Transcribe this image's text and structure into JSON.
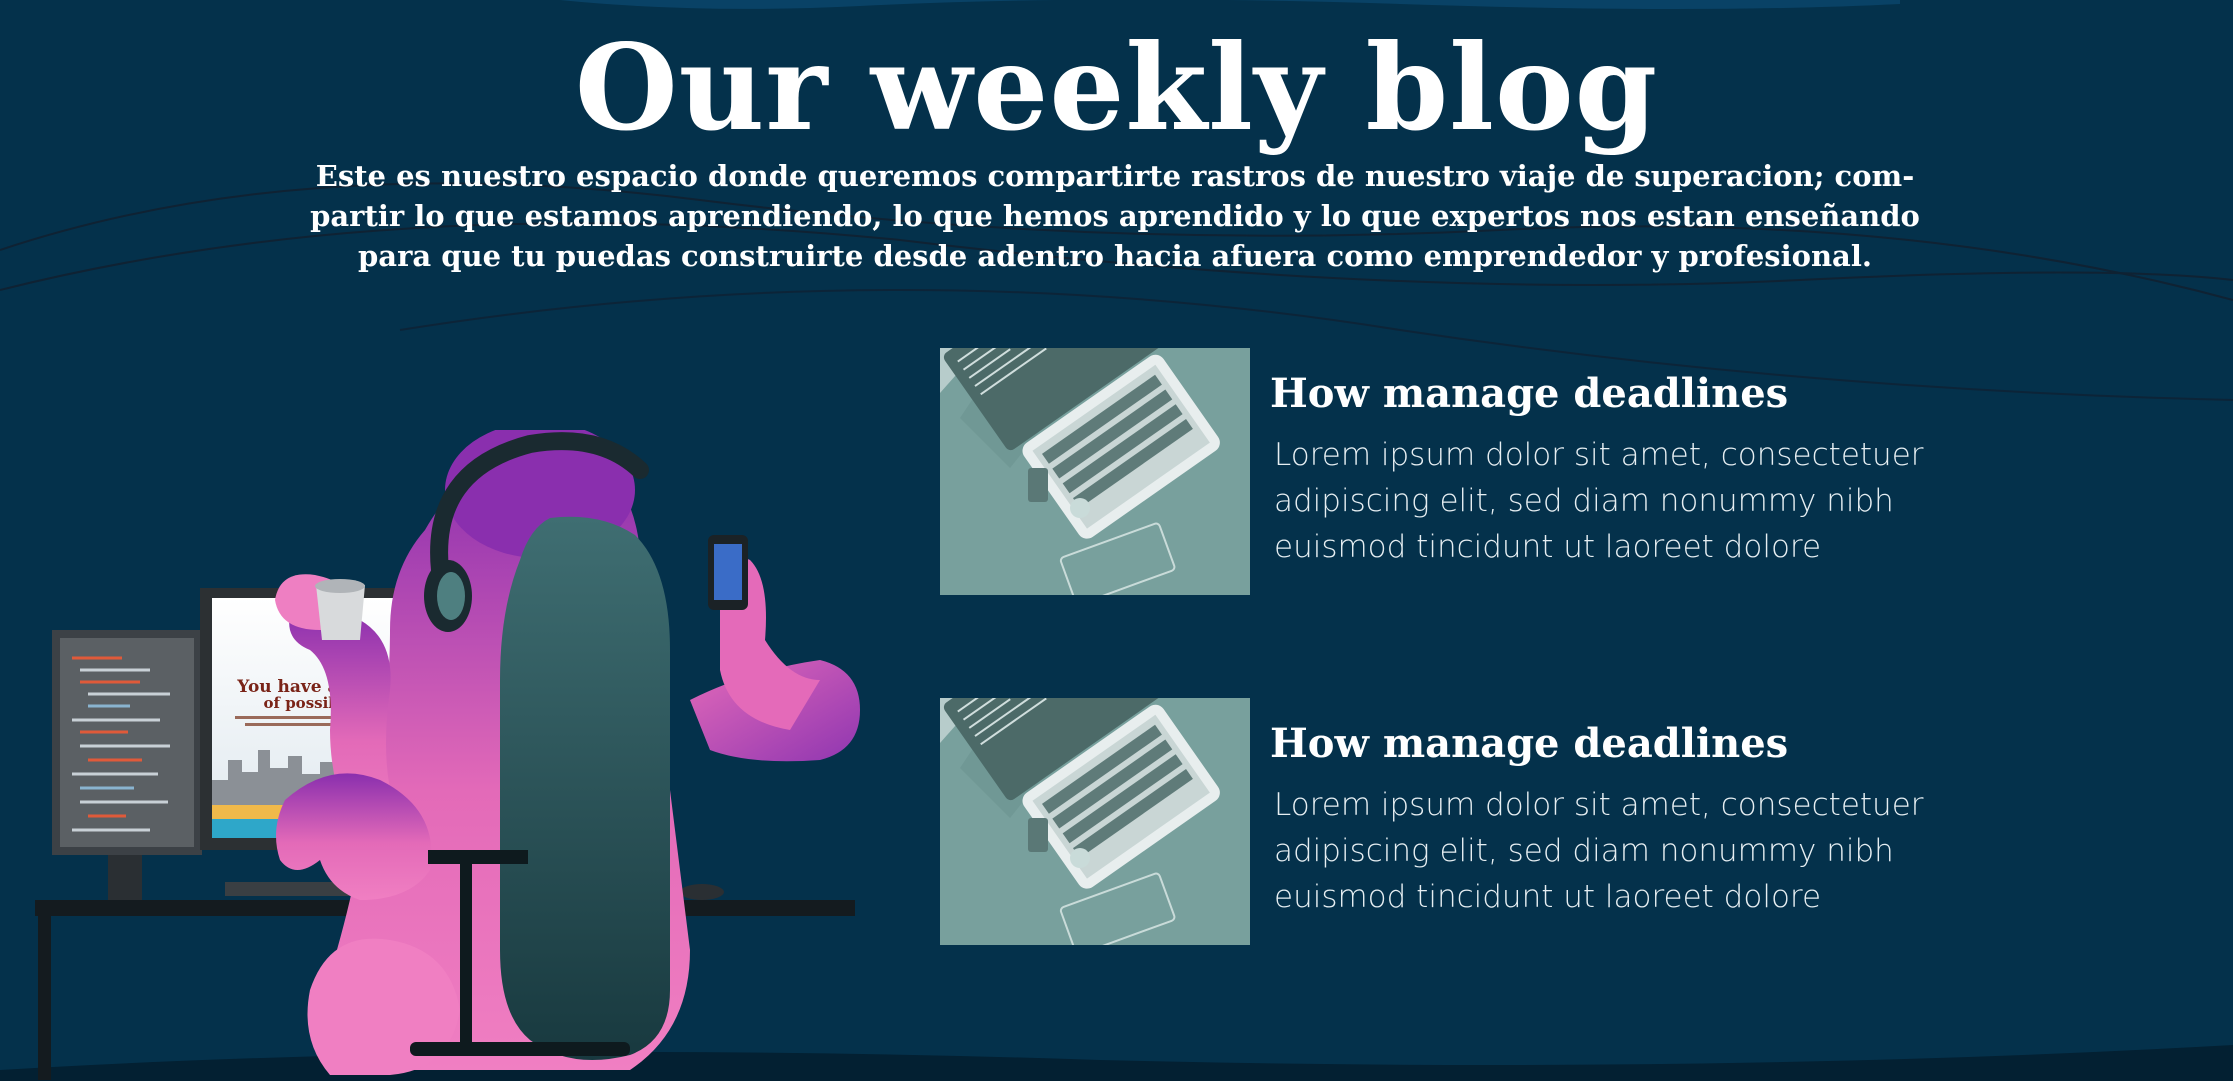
{
  "header": {
    "title": "Our weekly blog",
    "intro": "Este es nuestro espacio donde queremos compartirte rastros de nuestro viaje de superacion; com-partir lo que estamos aprendiendo, lo que hemos aprendido y lo que expertos nos estan enseñando para que tu puedas construirte desde adentro hacia afuera como emprendedor y profesional."
  },
  "illustration": {
    "screen_heading": "You have an ocean of possibilities",
    "icon": "person-at-desk-illustration"
  },
  "posts": [
    {
      "thumbnail_icon": "laptop-photo",
      "title": "How manage deadlines",
      "excerpt": "Lorem ipsum dolor sit amet, consectetuer adipiscing elit, sed diam nonummy nibh euismod tincidunt ut laoreet dolore"
    },
    {
      "thumbnail_icon": "laptop-photo",
      "title": "How manage deadlines",
      "excerpt": "Lorem ipsum dolor sit amet, consectetuer adipiscing elit, sed diam nonummy nibh euismod tincidunt ut laoreet dolore"
    }
  ],
  "colors": {
    "background": "#04314b",
    "accent_pink": "#ee6fb6",
    "accent_purple": "#8e35b0",
    "thumbnail_tint": "#78a09d"
  }
}
